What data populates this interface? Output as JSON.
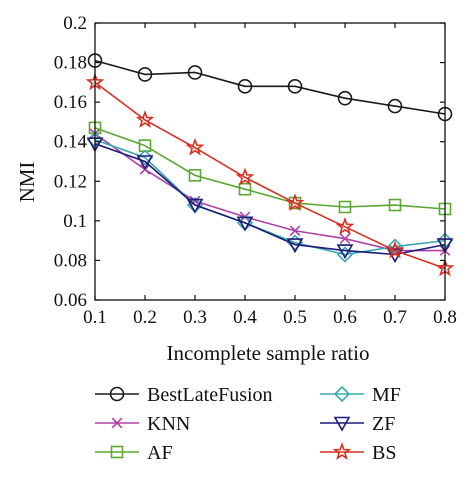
{
  "chart_data": {
    "type": "line",
    "title": "",
    "xlabel": "Incomplete sample ratio",
    "ylabel": "NMI",
    "xlim": [
      0.1,
      0.8
    ],
    "ylim": [
      0.06,
      0.2
    ],
    "grid": false,
    "legend_position": "bottom",
    "xticks": [
      "0.1",
      "0.2",
      "0.3",
      "0.4",
      "0.5",
      "0.6",
      "0.7",
      "0.8"
    ],
    "yticks": [
      "0.06",
      "0.08",
      "0.1",
      "0.12",
      "0.14",
      "0.16",
      "0.18",
      "0.2"
    ],
    "x": [
      0.1,
      0.2,
      0.3,
      0.4,
      0.5,
      0.6,
      0.7,
      0.8
    ],
    "series": [
      {
        "name": "BestLateFusion",
        "color": "#1a1a1a",
        "marker": "circle",
        "values": [
          0.181,
          0.174,
          0.175,
          0.168,
          0.168,
          0.162,
          0.158,
          0.154
        ]
      },
      {
        "name": "KNN",
        "color": "#b040a8",
        "marker": "x",
        "values": [
          0.144,
          0.126,
          0.11,
          0.102,
          0.095,
          0.091,
          0.085,
          0.085
        ]
      },
      {
        "name": "AF",
        "color": "#5aa832",
        "marker": "square",
        "values": [
          0.147,
          0.138,
          0.123,
          0.116,
          0.109,
          0.107,
          0.108,
          0.106
        ]
      },
      {
        "name": "MF",
        "color": "#3aa8b0",
        "marker": "diamond",
        "values": [
          0.141,
          0.132,
          0.108,
          0.099,
          0.089,
          0.083,
          0.087,
          0.09
        ]
      },
      {
        "name": "ZF",
        "color": "#1c1c7a",
        "marker": "triangle-down",
        "values": [
          0.139,
          0.13,
          0.108,
          0.099,
          0.088,
          0.085,
          0.083,
          0.088
        ]
      },
      {
        "name": "BS",
        "color": "#d83020",
        "marker": "star",
        "values": [
          0.17,
          0.151,
          0.137,
          0.122,
          0.109,
          0.097,
          0.085,
          0.076
        ]
      }
    ]
  }
}
